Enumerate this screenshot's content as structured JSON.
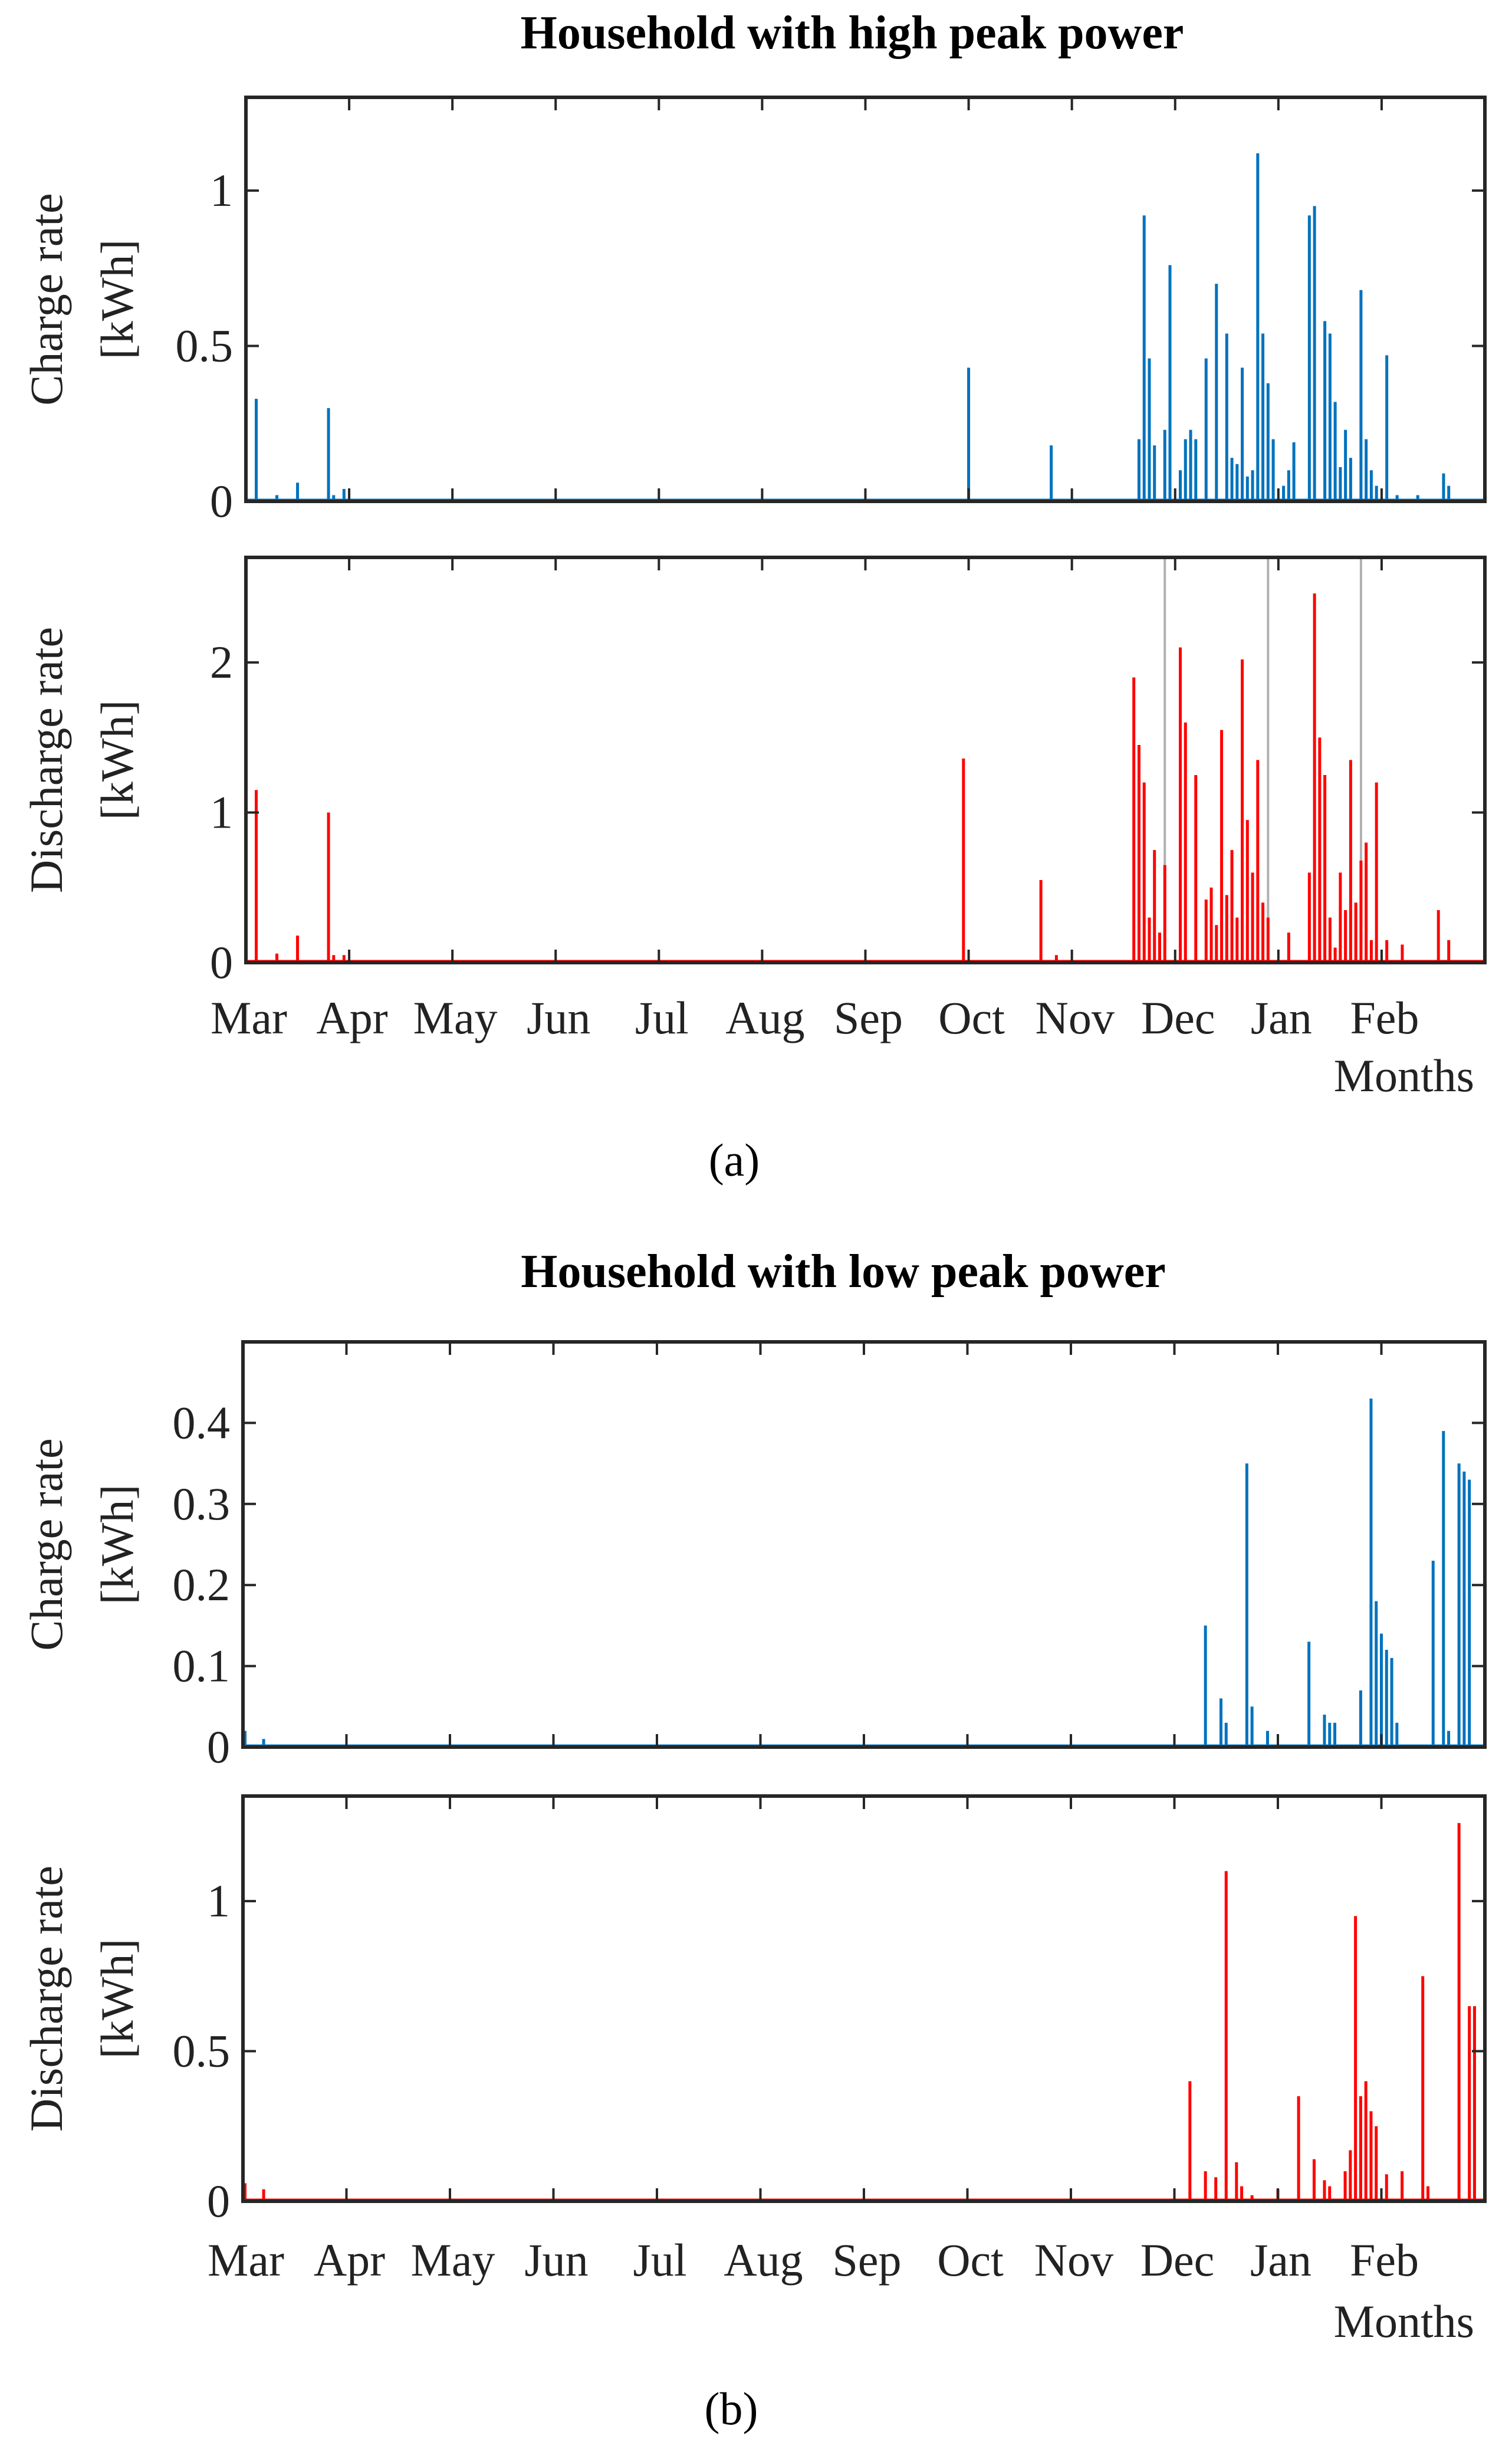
{
  "colors": {
    "charge": "#0072BD",
    "discharge": "#FF0000",
    "guide": "#B0B0B0"
  },
  "captions": [
    "(a)",
    "(b)"
  ],
  "chart_data": [
    {
      "id": "high",
      "title": "Household with high peak power",
      "xlabel": "Months",
      "months": [
        "Mar",
        "Apr",
        "May",
        "Jun",
        "Jul",
        "Aug",
        "Sep",
        "Oct",
        "Nov",
        "Dec",
        "Jan",
        "Feb"
      ],
      "subplots": [
        {
          "type": "bar",
          "series": "charge",
          "ylabel_line1": "Charge rate",
          "ylabel_line2": "[kWh]",
          "ylim": [
            0,
            1.3
          ],
          "yticks": [
            0,
            0.5,
            1
          ],
          "ytick_labels": [
            "0",
            "0.5",
            "1"
          ],
          "x": [
            0.1,
            0.3,
            0.5,
            0.8,
            0.85,
            0.95,
            7.0,
            7.8,
            8.65,
            8.7,
            8.75,
            8.8,
            8.9,
            8.95,
            9.05,
            9.1,
            9.15,
            9.2,
            9.3,
            9.4,
            9.5,
            9.55,
            9.6,
            9.65,
            9.7,
            9.75,
            9.8,
            9.85,
            9.9,
            9.95,
            10.05,
            10.1,
            10.15,
            10.3,
            10.35,
            10.45,
            10.5,
            10.55,
            10.6,
            10.65,
            10.7,
            10.8,
            10.85,
            10.9,
            10.95,
            11.05,
            11.15,
            11.35,
            11.6,
            11.65
          ],
          "values": [
            0.33,
            0.02,
            0.06,
            0.3,
            0.02,
            0.04,
            0.43,
            0.18,
            0.2,
            0.92,
            0.46,
            0.18,
            0.23,
            0.76,
            0.1,
            0.2,
            0.23,
            0.2,
            0.46,
            0.7,
            0.54,
            0.14,
            0.12,
            0.43,
            0.08,
            0.1,
            1.12,
            0.54,
            0.38,
            0.2,
            0.05,
            0.1,
            0.19,
            0.92,
            0.95,
            0.58,
            0.54,
            0.32,
            0.11,
            0.23,
            0.14,
            0.68,
            0.2,
            0.1,
            0.05,
            0.47,
            0.02,
            0.02,
            0.09,
            0.05
          ]
        },
        {
          "type": "bar",
          "series": "discharge",
          "ylabel_line1": "Discharge rate",
          "ylabel_line2": "[kWh]",
          "ylim": [
            0,
            2.7
          ],
          "yticks": [
            0,
            1,
            2
          ],
          "ytick_labels": [
            "0",
            "1",
            "2"
          ],
          "guides_x": [
            8.9,
            9.9,
            10.8
          ],
          "x": [
            0.1,
            0.3,
            0.5,
            0.8,
            0.85,
            0.95,
            6.95,
            7.7,
            7.85,
            8.6,
            8.65,
            8.7,
            8.75,
            8.8,
            8.85,
            8.9,
            9.05,
            9.1,
            9.2,
            9.3,
            9.35,
            9.4,
            9.45,
            9.5,
            9.55,
            9.6,
            9.65,
            9.7,
            9.75,
            9.8,
            9.85,
            9.9,
            10.1,
            10.3,
            10.35,
            10.4,
            10.45,
            10.5,
            10.55,
            10.6,
            10.65,
            10.7,
            10.75,
            10.8,
            10.85,
            10.9,
            10.95,
            11.05,
            11.2,
            11.55,
            11.65
          ],
          "values": [
            1.15,
            0.06,
            0.18,
            1.0,
            0.05,
            0.05,
            1.36,
            0.55,
            0.05,
            1.9,
            1.45,
            1.2,
            0.3,
            0.75,
            0.2,
            0.65,
            2.1,
            1.6,
            1.25,
            0.42,
            0.5,
            0.25,
            1.55,
            0.45,
            0.75,
            0.3,
            2.02,
            0.95,
            0.6,
            1.35,
            0.4,
            0.3,
            0.2,
            0.6,
            2.46,
            1.5,
            1.25,
            0.3,
            0.1,
            0.6,
            0.35,
            1.35,
            0.4,
            0.68,
            0.8,
            0.15,
            1.2,
            0.15,
            0.12,
            0.35,
            0.15
          ]
        }
      ]
    },
    {
      "id": "low",
      "title": "Household with low peak power",
      "xlabel": "Months",
      "months": [
        "Mar",
        "Apr",
        "May",
        "Jun",
        "Jul",
        "Aug",
        "Sep",
        "Oct",
        "Nov",
        "Dec",
        "Jan",
        "Feb"
      ],
      "subplots": [
        {
          "type": "bar",
          "series": "charge",
          "ylabel_line1": "Charge rate",
          "ylabel_line2": "[kWh]",
          "ylim": [
            0,
            0.5
          ],
          "yticks": [
            0,
            0.1,
            0.2,
            0.3,
            0.4
          ],
          "ytick_labels": [
            "0",
            "0.1",
            "0.2",
            "0.3",
            "0.4"
          ],
          "x": [
            0.02,
            0.2,
            9.3,
            9.45,
            9.5,
            9.7,
            9.75,
            9.9,
            10.3,
            10.45,
            10.5,
            10.55,
            10.8,
            10.9,
            10.95,
            11.0,
            11.05,
            11.1,
            11.15,
            11.5,
            11.6,
            11.65,
            11.75,
            11.8,
            11.85
          ],
          "values": [
            0.02,
            0.01,
            0.15,
            0.06,
            0.03,
            0.35,
            0.05,
            0.02,
            0.13,
            0.04,
            0.03,
            0.03,
            0.07,
            0.43,
            0.18,
            0.14,
            0.12,
            0.11,
            0.03,
            0.23,
            0.39,
            0.02,
            0.35,
            0.34,
            0.33
          ]
        },
        {
          "type": "bar",
          "series": "discharge",
          "ylabel_line1": "Discharge rate",
          "ylabel_line2": "[kWh]",
          "ylim": [
            0,
            1.35
          ],
          "yticks": [
            0,
            0.5,
            1
          ],
          "ytick_labels": [
            "0",
            "0.5",
            "1"
          ],
          "x": [
            0.02,
            0.2,
            9.15,
            9.3,
            9.4,
            9.5,
            9.6,
            9.65,
            9.75,
            10.0,
            10.2,
            10.35,
            10.45,
            10.5,
            10.65,
            10.7,
            10.75,
            10.8,
            10.85,
            10.9,
            10.95,
            11.05,
            11.2,
            11.4,
            11.45,
            11.75,
            11.85,
            11.9
          ],
          "values": [
            0.06,
            0.04,
            0.4,
            0.1,
            0.08,
            1.1,
            0.13,
            0.05,
            0.02,
            0.04,
            0.35,
            0.14,
            0.07,
            0.05,
            0.1,
            0.17,
            0.95,
            0.35,
            0.4,
            0.3,
            0.25,
            0.09,
            0.1,
            0.75,
            0.05,
            1.26,
            0.65,
            0.65
          ]
        }
      ]
    }
  ]
}
